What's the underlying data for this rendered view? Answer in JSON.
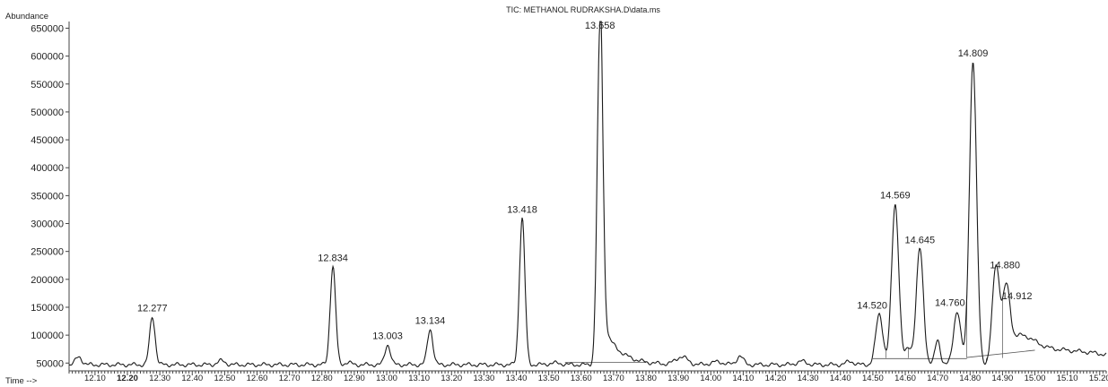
{
  "chart_data": {
    "type": "line",
    "title": "TIC: METHANOL RUDRAKSHA.D\\data.ms",
    "ylabel": "Abundance",
    "xlabel": "Time -->",
    "xlim": [
      12.02,
      15.22
    ],
    "ylim": [
      36000,
      662000
    ],
    "yticks": [
      50000,
      100000,
      150000,
      200000,
      250000,
      300000,
      350000,
      400000,
      450000,
      500000,
      550000,
      600000,
      650000
    ],
    "ytick_labels": [
      "50000",
      "100000",
      "150000",
      "200000",
      "250000",
      "300000",
      "350000",
      "400000",
      "450000",
      "500000",
      "550000",
      "600000",
      "650000"
    ],
    "xticks": [
      12.1,
      12.2,
      12.3,
      12.4,
      12.5,
      12.6,
      12.7,
      12.8,
      12.9,
      13.0,
      13.1,
      13.2,
      13.3,
      13.4,
      13.5,
      13.6,
      13.7,
      13.8,
      13.9,
      14.0,
      14.1,
      14.2,
      14.3,
      14.4,
      14.5,
      14.6,
      14.7,
      14.8,
      14.9,
      15.0,
      15.1,
      15.2
    ],
    "xtick_labels": [
      "12.10",
      "12.20",
      "12.30",
      "12.40",
      "12.50",
      "12.60",
      "12.70",
      "12.80",
      "12.90",
      "13.00",
      "13.10",
      "13.20",
      "13.30",
      "13.40",
      "13.50",
      "13.60",
      "13.70",
      "13.80",
      "13.90",
      "14.00",
      "14.10",
      "14.20",
      "14.30",
      "14.40",
      "14.50",
      "14.60",
      "14.70",
      "14.80",
      "14.90",
      "15.00",
      "15.10",
      "15.20"
    ],
    "baseline": 47000,
    "peaks": [
      {
        "label": "12.277",
        "rt": 12.277,
        "height": 133000
      },
      {
        "label": "12.834",
        "rt": 12.834,
        "height": 223000
      },
      {
        "label": "13.003",
        "rt": 13.003,
        "height": 83000
      },
      {
        "label": "13.134",
        "rt": 13.134,
        "height": 111000
      },
      {
        "label": "13.418",
        "rt": 13.418,
        "height": 310000
      },
      {
        "label": "13.658",
        "rt": 13.658,
        "height": 650000
      },
      {
        "label": "14.520",
        "rt": 14.52,
        "height": 138000
      },
      {
        "label": "14.569",
        "rt": 14.569,
        "height": 335000
      },
      {
        "label": "14.645",
        "rt": 14.645,
        "height": 255000
      },
      {
        "label": "14.760",
        "rt": 14.76,
        "height": 143000
      },
      {
        "label": "14.809",
        "rt": 14.809,
        "height": 590000
      },
      {
        "label": "14.880",
        "rt": 14.88,
        "height": 210000
      },
      {
        "label": "14.912",
        "rt": 14.912,
        "height": 155000
      }
    ],
    "grid": false,
    "colors": {
      "trace": "#1a1a1a",
      "axis": "#444444"
    }
  }
}
